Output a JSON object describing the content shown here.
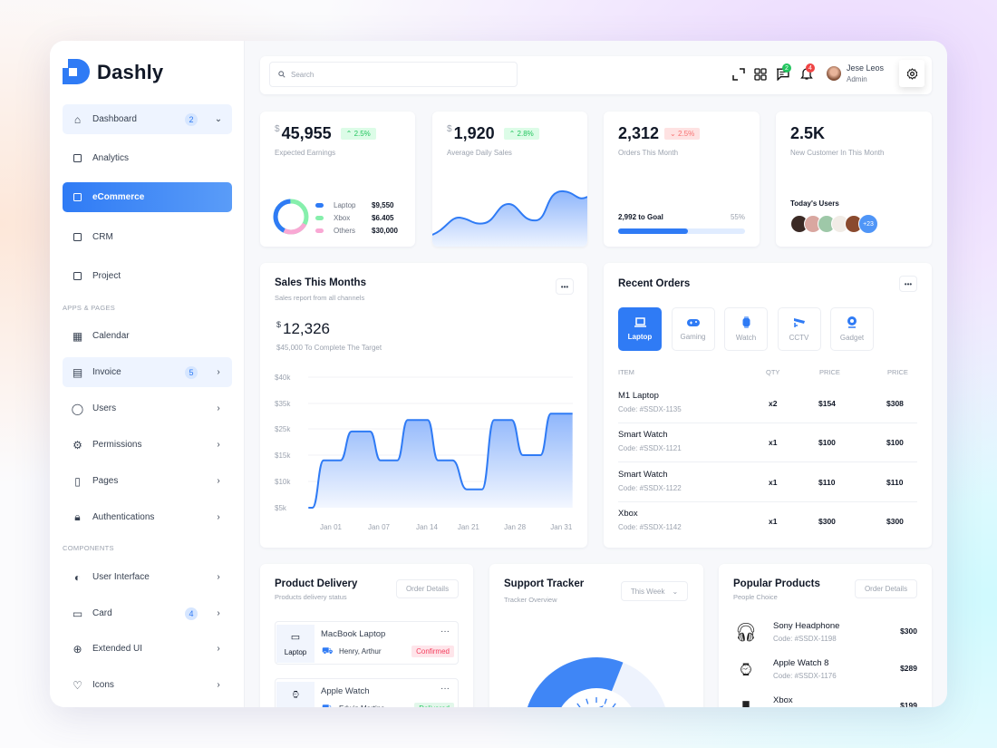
{
  "brand": {
    "name": "Dashly"
  },
  "header": {
    "search_placeholder": "Search",
    "messages_count": "2",
    "notifications_count": "4",
    "user": {
      "name": "Jese Leos",
      "role": "Admin"
    }
  },
  "sidebar": {
    "entries": [
      {
        "type": "item",
        "label": "Dashboard",
        "icon": "home-icon",
        "badge": "2",
        "chevron": "down",
        "style": "light"
      },
      {
        "type": "item",
        "label": "Analytics",
        "icon": "square-icon"
      },
      {
        "type": "item",
        "label": "eCommerce",
        "icon": "square-icon",
        "style": "active"
      },
      {
        "type": "item",
        "label": "CRM",
        "icon": "square-icon"
      },
      {
        "type": "item",
        "label": "Project",
        "icon": "square-icon"
      },
      {
        "type": "section",
        "label": "APPS & PAGES"
      },
      {
        "type": "item",
        "label": "Calendar",
        "icon": "calendar-icon"
      },
      {
        "type": "item",
        "label": "Invoice",
        "icon": "invoice-icon",
        "badge": "5",
        "chevron": "right",
        "style": "light"
      },
      {
        "type": "item",
        "label": "Users",
        "icon": "user-icon",
        "chevron": "right"
      },
      {
        "type": "item",
        "label": "Permissions",
        "icon": "gear-icon",
        "chevron": "right"
      },
      {
        "type": "item",
        "label": "Pages",
        "icon": "file-icon",
        "chevron": "right"
      },
      {
        "type": "item",
        "label": "Authentications",
        "icon": "lock-icon",
        "chevron": "right"
      },
      {
        "type": "section",
        "label": "COMPONENTS"
      },
      {
        "type": "item",
        "label": "User Interface",
        "icon": "palette-icon",
        "chevron": "right"
      },
      {
        "type": "item",
        "label": "Card",
        "icon": "card-icon",
        "badge": "4",
        "chevron": "right"
      },
      {
        "type": "item",
        "label": "Extended UI",
        "icon": "plus-circle-icon",
        "chevron": "right"
      },
      {
        "type": "item",
        "label": "Icons",
        "icon": "heart-icon",
        "chevron": "right"
      }
    ]
  },
  "stats": {
    "earnings": {
      "currency": "$",
      "value": "45,955",
      "change": "2.5%",
      "direction": "up",
      "label": "Expected Earnings",
      "legend": [
        {
          "name": "Laptop",
          "value": "$9,550",
          "color": "#2f7bf5"
        },
        {
          "name": "Xbox",
          "value": "$6.405",
          "color": "#86efac"
        },
        {
          "name": "Others",
          "value": "$30,000",
          "color": "#f9a8d4"
        }
      ]
    },
    "daily": {
      "currency": "$",
      "value": "1,920",
      "change": "2.8%",
      "direction": "up",
      "label": "Average Daily Sales"
    },
    "orders": {
      "value": "2,312",
      "change": "2.5%",
      "direction": "down",
      "label": "Orders This Month",
      "goal_label": "2,992 to Goal",
      "progress_text": "55%",
      "progress": 55
    },
    "customers": {
      "value": "2.5K",
      "label": "New Customer In This Month",
      "today_label": "Today's Users",
      "more": "+23"
    }
  },
  "sales": {
    "title": "Sales This Months",
    "subtitle": "Sales report from all channels",
    "currency": "$",
    "value": "12,326",
    "target_text": "$45,000 To Complete The Target",
    "chart_data": {
      "type": "area",
      "y_ticks": [
        "$5k",
        "$10k",
        "$15k",
        "$25k",
        "$35k",
        "$40k"
      ],
      "y_tick_values": [
        5000,
        10000,
        15000,
        25000,
        35000,
        40000
      ],
      "x_ticks": [
        {
          "label": "Jan 01",
          "day": 1
        },
        {
          "label": "Jan 07",
          "day": 7
        },
        {
          "label": "Jan 14",
          "day": 13
        },
        {
          "label": "Jan 21",
          "day": 18.2
        },
        {
          "label": "Jan 28",
          "day": 24
        },
        {
          "label": "Jan 31",
          "day": 29.8
        }
      ],
      "series": [
        {
          "color": "#2f7bf5",
          "points": [
            [
              -1.8,
              5000
            ],
            [
              -1.3,
              5000
            ],
            [
              0.1,
              14000
            ],
            [
              2.2,
              14000
            ],
            [
              3.6,
              24000
            ],
            [
              5.9,
              24000
            ],
            [
              7.2,
              14000
            ],
            [
              9.3,
              14000
            ],
            [
              10.6,
              28500
            ],
            [
              13.1,
              28500
            ],
            [
              14.4,
              14000
            ],
            [
              16.2,
              14000
            ],
            [
              18,
              8500
            ],
            [
              19.9,
              8500
            ],
            [
              21.4,
              28500
            ],
            [
              23.6,
              28500
            ],
            [
              25,
              15000
            ],
            [
              27.2,
              15000
            ],
            [
              28.5,
              31000
            ],
            [
              31.2,
              31000
            ]
          ]
        }
      ],
      "grid": true
    }
  },
  "recent": {
    "title": "Recent Orders",
    "tabs": [
      {
        "label": "Laptop",
        "icon": "laptop-icon",
        "selected": true
      },
      {
        "label": "Gaming",
        "icon": "gamepad-icon"
      },
      {
        "label": "Watch",
        "icon": "watch-icon"
      },
      {
        "label": "CCTV",
        "icon": "cctv-icon"
      },
      {
        "label": "Gadget",
        "icon": "webcam-icon"
      }
    ],
    "columns": [
      "ITEM",
      "QTY",
      "PRICE",
      "PRICE"
    ],
    "rows": [
      {
        "name": "M1 Laptop",
        "code": "Code: #SSDX-1135",
        "qty": "x2",
        "price": "$154",
        "total": "$308"
      },
      {
        "name": "Smart Watch",
        "code": "Code: #SSDX-1121",
        "qty": "x1",
        "price": "$100",
        "total": "$100"
      },
      {
        "name": "Smart Watch",
        "code": "Code: #SSDX-1122",
        "qty": "x1",
        "price": "$110",
        "total": "$110"
      },
      {
        "name": "Xbox",
        "code": "Code: #SSDX-1142",
        "qty": "x1",
        "price": "$300",
        "total": "$300"
      }
    ]
  },
  "delivery": {
    "title": "Product Delivery",
    "subtitle": "Products delivery status",
    "button": "Order Details",
    "items": [
      {
        "name": "MacBook Laptop",
        "type": "Laptop",
        "person": "Henry, Arthur",
        "status": "Confirmed",
        "status_color": "#f43f5e"
      },
      {
        "name": "Apple Watch",
        "type": "Watch",
        "person": "Edwin Martins",
        "status": "Delivered",
        "status_color": "#22c55e"
      }
    ]
  },
  "tracker": {
    "title": "Support Tracker",
    "subtitle": "Tracker Overview",
    "period": "This Week",
    "gauge_fraction": 0.62
  },
  "popular": {
    "title": "Popular Products",
    "subtitle": "People Choice",
    "button": "Order Details",
    "items": [
      {
        "name": "Sony Headphone",
        "code": "Code: #SSDX-1198",
        "price": "$300"
      },
      {
        "name": "Apple Watch 8",
        "code": "Code: #SSDX-1176",
        "price": "$289"
      },
      {
        "name": "Xbox",
        "code": "",
        "price": "$199"
      }
    ]
  }
}
